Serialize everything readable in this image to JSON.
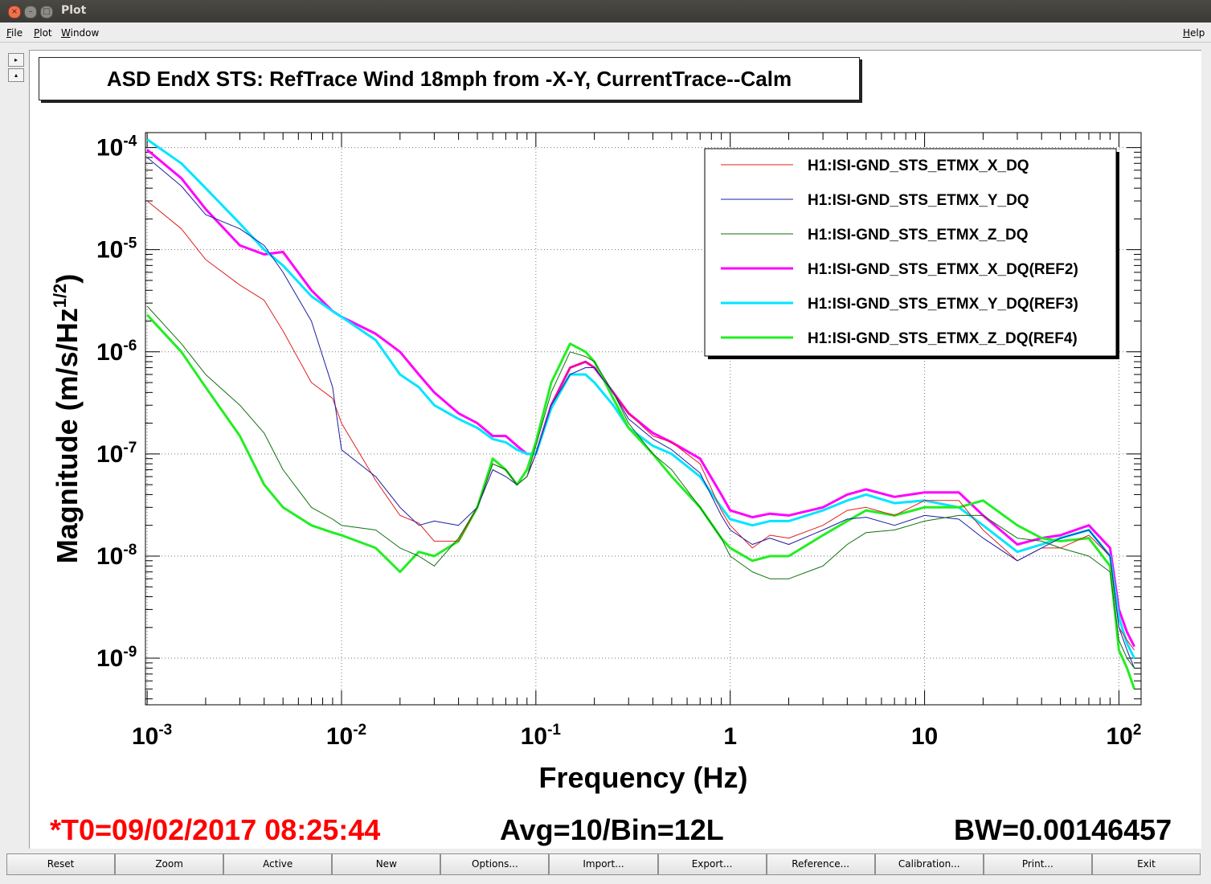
{
  "window": {
    "title": "Plot"
  },
  "menu": {
    "file": "File",
    "plot": "Plot",
    "window": "Window",
    "help": "Help"
  },
  "side": {
    "expand": "▸",
    "collapse": "▴"
  },
  "plot": {
    "title": "ASD EndX STS: RefTrace Wind 18mph from -X-Y, CurrentTrace--Calm",
    "xlabel": "Frequency (Hz)",
    "ylabel_main": "Magnitude (m/s/Hz",
    "ylabel_sup": "1/2",
    "ylabel_close": ")",
    "xticks": [
      {
        "base": "10",
        "exp": "-3"
      },
      {
        "base": "10",
        "exp": "-2"
      },
      {
        "base": "10",
        "exp": "-1"
      },
      {
        "base": "1",
        "exp": ""
      },
      {
        "base": "10",
        "exp": ""
      },
      {
        "base": "10",
        "exp": "2"
      }
    ],
    "yticks": [
      {
        "base": "10",
        "exp": "-4"
      },
      {
        "base": "10",
        "exp": "-5"
      },
      {
        "base": "10",
        "exp": "-6"
      },
      {
        "base": "10",
        "exp": "-7"
      },
      {
        "base": "10",
        "exp": "-8"
      },
      {
        "base": "10",
        "exp": "-9"
      }
    ]
  },
  "chart_data": {
    "type": "line",
    "x_scale": "log",
    "y_scale": "log",
    "xlim": [
      0.00098,
      130
    ],
    "ylim": [
      3.5e-10,
      0.00014
    ],
    "grid": true,
    "legend_position": "top-right",
    "series": [
      {
        "name": "H1:ISI-GND_STS_ETMX_X_DQ",
        "color": "#e02020",
        "width": 1,
        "x": [
          0.001,
          0.0015,
          0.002,
          0.003,
          0.004,
          0.005,
          0.007,
          0.009,
          0.01,
          0.015,
          0.02,
          0.025,
          0.03,
          0.04,
          0.05,
          0.06,
          0.07,
          0.08,
          0.09,
          0.1,
          0.12,
          0.15,
          0.18,
          0.2,
          0.25,
          0.3,
          0.4,
          0.5,
          0.7,
          0.9,
          1,
          1.3,
          1.6,
          2,
          3,
          4,
          5,
          7,
          10,
          15,
          20,
          30,
          40,
          50,
          70,
          90,
          100,
          110,
          120
        ],
        "y": [
          3e-05,
          1.6e-05,
          8e-06,
          4.5e-06,
          3.2e-06,
          1.6e-06,
          5e-07,
          3.5e-07,
          2e-07,
          5.5e-08,
          2.5e-08,
          2.1e-08,
          1.4e-08,
          1.4e-08,
          3e-08,
          8e-08,
          7e-08,
          5e-08,
          6e-08,
          1e-07,
          3e-07,
          7e-07,
          8e-07,
          7e-07,
          4e-07,
          2.5e-07,
          1.5e-07,
          1.3e-07,
          8e-08,
          2.8e-08,
          2e-08,
          1.2e-08,
          1.6e-08,
          1.5e-08,
          2e-08,
          2.8e-08,
          3e-08,
          2.5e-08,
          3.5e-08,
          3.5e-08,
          1.8e-08,
          9e-09,
          1.2e-08,
          1.2e-08,
          1.6e-08,
          1e-08,
          2e-09,
          1.5e-09,
          1.2e-09
        ]
      },
      {
        "name": "H1:ISI-GND_STS_ETMX_Y_DQ",
        "color": "#1c1ca0",
        "width": 1,
        "x": [
          0.001,
          0.0015,
          0.002,
          0.003,
          0.004,
          0.005,
          0.007,
          0.009,
          0.01,
          0.015,
          0.02,
          0.025,
          0.03,
          0.04,
          0.05,
          0.06,
          0.07,
          0.08,
          0.09,
          0.1,
          0.12,
          0.15,
          0.18,
          0.2,
          0.25,
          0.3,
          0.4,
          0.5,
          0.7,
          0.9,
          1,
          1.3,
          1.6,
          2,
          3,
          4,
          5,
          7,
          10,
          15,
          20,
          30,
          40,
          50,
          70,
          90,
          100,
          110,
          120
        ],
        "y": [
          8e-05,
          4.2e-05,
          2.2e-05,
          1.6e-05,
          1.1e-05,
          6e-06,
          2e-06,
          4.5e-07,
          1.1e-07,
          6e-08,
          3e-08,
          2e-08,
          2.2e-08,
          2e-08,
          3e-08,
          7e-08,
          6e-08,
          5e-08,
          6e-08,
          1e-07,
          3e-07,
          6e-07,
          7e-07,
          7e-07,
          4e-07,
          2.2e-07,
          1.4e-07,
          1.1e-07,
          6.5e-08,
          2.5e-08,
          1.8e-08,
          1.3e-08,
          1.5e-08,
          1.3e-08,
          1.8e-08,
          2.3e-08,
          2.4e-08,
          2e-08,
          2.5e-08,
          2.3e-08,
          1.5e-08,
          9e-09,
          1.2e-08,
          1.5e-08,
          1.8e-08,
          1e-08,
          2e-09,
          1.2e-09,
          8e-10
        ]
      },
      {
        "name": "H1:ISI-GND_STS_ETMX_Z_DQ",
        "color": "#107010",
        "width": 1,
        "x": [
          0.001,
          0.0015,
          0.002,
          0.003,
          0.004,
          0.005,
          0.007,
          0.009,
          0.01,
          0.015,
          0.02,
          0.025,
          0.03,
          0.04,
          0.05,
          0.06,
          0.07,
          0.08,
          0.09,
          0.1,
          0.12,
          0.15,
          0.18,
          0.2,
          0.25,
          0.3,
          0.4,
          0.5,
          0.7,
          0.9,
          1,
          1.3,
          1.6,
          2,
          3,
          4,
          5,
          7,
          10,
          15,
          20,
          30,
          40,
          50,
          70,
          90,
          100,
          110,
          120
        ],
        "y": [
          2.8e-06,
          1.2e-06,
          6e-07,
          3e-07,
          1.6e-07,
          7e-08,
          3e-08,
          2.3e-08,
          2e-08,
          1.8e-08,
          1.2e-08,
          1e-08,
          8e-09,
          1.5e-08,
          3e-08,
          8e-08,
          7e-08,
          5e-08,
          6e-08,
          1.2e-07,
          4e-07,
          1e-06,
          9e-07,
          8e-07,
          4e-07,
          2e-07,
          1e-07,
          7e-08,
          3e-08,
          1.5e-08,
          1e-08,
          7e-09,
          6e-09,
          6e-09,
          8e-09,
          1.3e-08,
          1.7e-08,
          1.8e-08,
          2.2e-08,
          2.5e-08,
          2.5e-08,
          1.5e-08,
          1.4e-08,
          1.2e-08,
          1e-08,
          7e-09,
          1.5e-09,
          1e-09,
          8e-10
        ]
      },
      {
        "name": "H1:ISI-GND_STS_ETMX_X_DQ(REF2)",
        "color": "#ff00ff",
        "width": 3,
        "x": [
          0.001,
          0.0015,
          0.002,
          0.003,
          0.004,
          0.005,
          0.007,
          0.009,
          0.01,
          0.015,
          0.02,
          0.025,
          0.03,
          0.04,
          0.05,
          0.06,
          0.07,
          0.08,
          0.09,
          0.1,
          0.12,
          0.15,
          0.18,
          0.2,
          0.25,
          0.3,
          0.4,
          0.5,
          0.7,
          0.9,
          1,
          1.3,
          1.6,
          2,
          3,
          4,
          5,
          7,
          10,
          15,
          20,
          30,
          40,
          50,
          70,
          90,
          100,
          110,
          120
        ],
        "y": [
          9.5e-05,
          5e-05,
          2.5e-05,
          1.1e-05,
          9e-06,
          9.5e-06,
          4e-06,
          2.5e-06,
          2.2e-06,
          1.5e-06,
          1e-06,
          6e-07,
          4e-07,
          2.5e-07,
          2e-07,
          1.5e-07,
          1.5e-07,
          1.2e-07,
          1e-07,
          1e-07,
          3e-07,
          7e-07,
          8e-07,
          7e-07,
          4e-07,
          2.5e-07,
          1.6e-07,
          1.3e-07,
          9e-08,
          4e-08,
          2.8e-08,
          2.4e-08,
          2.6e-08,
          2.5e-08,
          3e-08,
          4e-08,
          4.5e-08,
          3.8e-08,
          4.2e-08,
          4.2e-08,
          2.5e-08,
          1.3e-08,
          1.5e-08,
          1.6e-08,
          2e-08,
          1.2e-08,
          3e-09,
          1.8e-09,
          1.3e-09
        ]
      },
      {
        "name": "H1:ISI-GND_STS_ETMX_Y_DQ(REF3)",
        "color": "#00e5ff",
        "width": 3,
        "x": [
          0.001,
          0.0015,
          0.002,
          0.003,
          0.004,
          0.005,
          0.007,
          0.009,
          0.01,
          0.015,
          0.02,
          0.025,
          0.03,
          0.04,
          0.05,
          0.06,
          0.07,
          0.08,
          0.09,
          0.1,
          0.12,
          0.15,
          0.18,
          0.2,
          0.25,
          0.3,
          0.4,
          0.5,
          0.7,
          0.9,
          1,
          1.3,
          1.6,
          2,
          3,
          4,
          5,
          7,
          10,
          15,
          20,
          30,
          40,
          50,
          70,
          90,
          100,
          110,
          120
        ],
        "y": [
          0.00012,
          7e-05,
          4e-05,
          1.8e-05,
          1e-05,
          7e-06,
          3.5e-06,
          2.5e-06,
          2.2e-06,
          1.3e-06,
          6e-07,
          4.5e-07,
          3e-07,
          2.2e-07,
          1.8e-07,
          1.4e-07,
          1.3e-07,
          1.1e-07,
          1e-07,
          1e-07,
          2.8e-07,
          6e-07,
          6e-07,
          5e-07,
          3e-07,
          1.8e-07,
          1.2e-07,
          1e-07,
          6e-08,
          3e-08,
          2.3e-08,
          2e-08,
          2.2e-08,
          2.2e-08,
          2.8e-08,
          3.5e-08,
          4e-08,
          3.3e-08,
          3.5e-08,
          3e-08,
          2e-08,
          1.1e-08,
          1.3e-08,
          1.5e-08,
          1.8e-08,
          1e-08,
          2.5e-09,
          1.4e-09,
          1e-09
        ]
      },
      {
        "name": "H1:ISI-GND_STS_ETMX_Z_DQ(REF4)",
        "color": "#22ee22",
        "width": 3,
        "x": [
          0.001,
          0.0015,
          0.002,
          0.003,
          0.004,
          0.005,
          0.007,
          0.009,
          0.01,
          0.015,
          0.02,
          0.025,
          0.03,
          0.04,
          0.05,
          0.06,
          0.07,
          0.08,
          0.09,
          0.1,
          0.12,
          0.15,
          0.18,
          0.2,
          0.25,
          0.3,
          0.4,
          0.5,
          0.7,
          0.9,
          1,
          1.3,
          1.6,
          2,
          3,
          4,
          5,
          7,
          10,
          15,
          20,
          30,
          40,
          50,
          70,
          90,
          100,
          110,
          120
        ],
        "y": [
          2.3e-06,
          1e-06,
          4.5e-07,
          1.5e-07,
          5e-08,
          3e-08,
          2e-08,
          1.7e-08,
          1.6e-08,
          1.2e-08,
          7e-09,
          1.1e-08,
          1e-08,
          1.4e-08,
          3e-08,
          9e-08,
          7e-08,
          5e-08,
          7e-08,
          1.3e-07,
          5e-07,
          1.2e-06,
          1e-06,
          8e-07,
          3.5e-07,
          1.8e-07,
          1e-07,
          6e-08,
          3e-08,
          1.5e-08,
          1.2e-08,
          9e-09,
          1e-08,
          1e-08,
          1.6e-08,
          2.2e-08,
          2.8e-08,
          2.5e-08,
          3e-08,
          3e-08,
          3.5e-08,
          2e-08,
          1.5e-08,
          1.4e-08,
          1.5e-08,
          8e-09,
          1.2e-09,
          8e-10,
          5e-10
        ]
      }
    ]
  },
  "footer": {
    "t0": "*T0=09/02/2017 08:25:44",
    "avg": "Avg=10/Bin=12L",
    "bw": "BW=0.00146457",
    "t0_color": "#ff0000"
  },
  "buttons": [
    {
      "id": "reset",
      "label": "Reset"
    },
    {
      "id": "zoom",
      "label": "Zoom"
    },
    {
      "id": "active",
      "label": "Active"
    },
    {
      "id": "new",
      "label": "New"
    },
    {
      "id": "options",
      "label": "Options..."
    },
    {
      "id": "import",
      "label": "Import..."
    },
    {
      "id": "export",
      "label": "Export..."
    },
    {
      "id": "reference",
      "label": "Reference..."
    },
    {
      "id": "calibration",
      "label": "Calibration..."
    },
    {
      "id": "print",
      "label": "Print..."
    },
    {
      "id": "exit",
      "label": "Exit"
    }
  ]
}
